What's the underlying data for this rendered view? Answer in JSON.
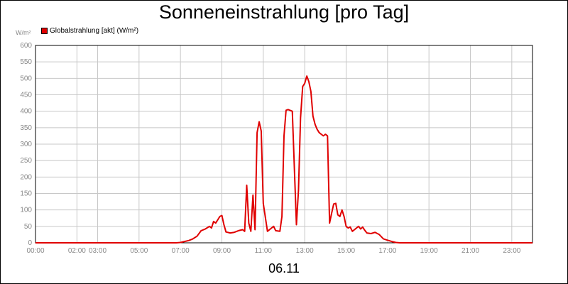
{
  "chart_data": {
    "type": "line",
    "title": "Sonneneinstrahlung [pro Tag]",
    "ylabel": "W/m²",
    "xlabel": "06.11",
    "ylim": [
      0,
      600
    ],
    "xlim": [
      0,
      24
    ],
    "yticks": [
      0,
      50,
      100,
      150,
      200,
      250,
      300,
      350,
      400,
      450,
      500,
      550,
      600
    ],
    "ytick_labels": [
      "0",
      "50",
      "100",
      "150",
      "200",
      "250",
      "300",
      "350",
      "400",
      "450",
      "500",
      "550",
      "600"
    ],
    "xticks": [
      0,
      2,
      3,
      5,
      7,
      9,
      11,
      13,
      15,
      17,
      19,
      21,
      23
    ],
    "xtick_labels": [
      "00:00",
      "02:00",
      "03:00",
      "05:00",
      "07:00",
      "09:00",
      "11:00",
      "13:00",
      "15:00",
      "17:00",
      "19:00",
      "21:00",
      "23:00"
    ],
    "grid": true,
    "legend": "top-left",
    "line_color": "#e00000",
    "series": [
      {
        "name": "Globalstrahlung [akt] (W/m²)",
        "x": [
          0,
          6.8,
          7.0,
          7.2,
          7.4,
          7.6,
          7.8,
          8.0,
          8.2,
          8.4,
          8.5,
          8.6,
          8.7,
          8.8,
          8.9,
          9.0,
          9.1,
          9.2,
          9.4,
          9.6,
          9.8,
          10.0,
          10.1,
          10.2,
          10.3,
          10.4,
          10.5,
          10.6,
          10.7,
          10.8,
          10.9,
          11.0,
          11.2,
          11.4,
          11.5,
          11.6,
          11.8,
          11.9,
          12.0,
          12.1,
          12.2,
          12.4,
          12.6,
          12.7,
          12.8,
          12.9,
          13.0,
          13.1,
          13.2,
          13.3,
          13.4,
          13.5,
          13.6,
          13.7,
          13.8,
          13.9,
          14.0,
          14.1,
          14.2,
          14.3,
          14.4,
          14.5,
          14.6,
          14.7,
          14.8,
          14.9,
          15.0,
          15.1,
          15.2,
          15.3,
          15.4,
          15.5,
          15.6,
          15.7,
          15.8,
          15.9,
          16.0,
          16.2,
          16.4,
          16.6,
          16.8,
          17.0,
          17.2,
          17.4,
          17.6,
          24
        ],
        "values": [
          0,
          0,
          1,
          4,
          7,
          12,
          20,
          37,
          42,
          50,
          45,
          65,
          60,
          70,
          80,
          83,
          55,
          33,
          30,
          32,
          37,
          40,
          35,
          175,
          60,
          35,
          145,
          40,
          335,
          368,
          340,
          120,
          35,
          45,
          50,
          37,
          35,
          80,
          325,
          403,
          405,
          400,
          55,
          160,
          380,
          475,
          485,
          507,
          490,
          460,
          385,
          360,
          345,
          335,
          330,
          325,
          330,
          325,
          60,
          90,
          118,
          120,
          85,
          80,
          100,
          80,
          50,
          45,
          48,
          35,
          40,
          45,
          50,
          42,
          48,
          38,
          30,
          28,
          32,
          25,
          12,
          8,
          4,
          1,
          0,
          0
        ]
      }
    ]
  }
}
